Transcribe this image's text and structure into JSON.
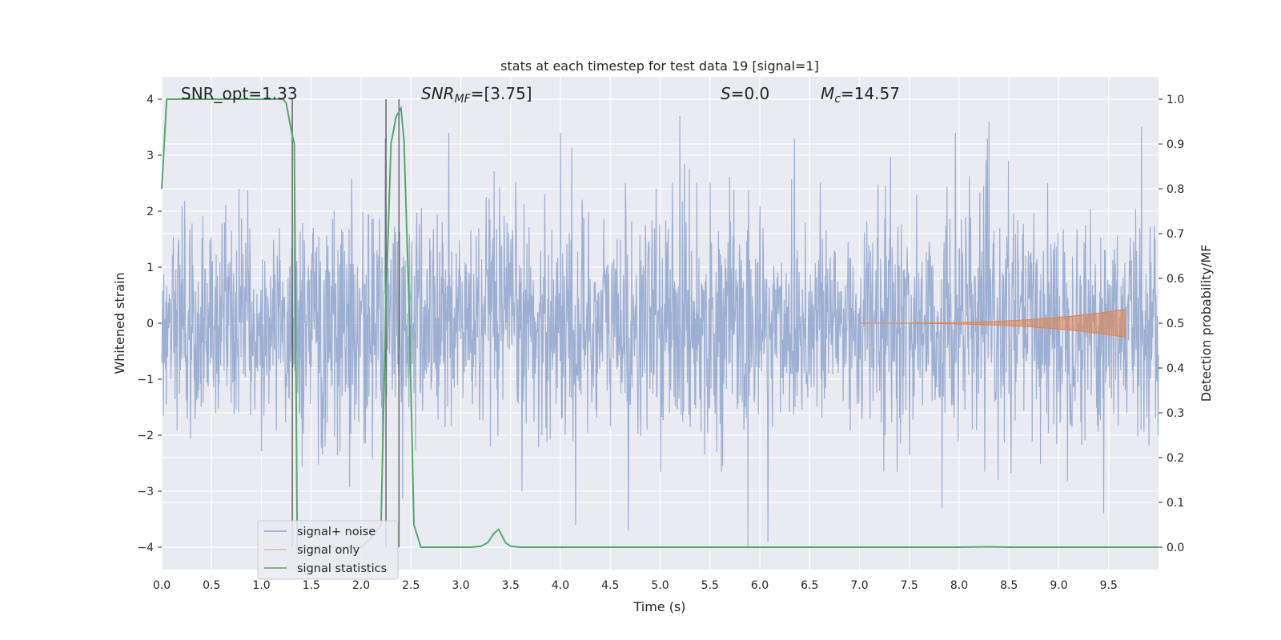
{
  "chart_data": {
    "type": "line",
    "title": "stats at each timestep for test data 19 [signal=1]",
    "xlabel": "Time (s)",
    "ylabel_left": "Whitened strain",
    "ylabel_right": "Detection probability/MF",
    "xlim": [
      0,
      10
    ],
    "ylim_left": [
      -4.4,
      4.4
    ],
    "ylim_right": [
      -0.05,
      1.05
    ],
    "x_ticks": [
      "0.0",
      "0.5",
      "1.0",
      "1.5",
      "2.0",
      "2.5",
      "3.0",
      "3.5",
      "4.0",
      "4.5",
      "5.0",
      "5.5",
      "6.0",
      "6.5",
      "7.0",
      "7.5",
      "8.0",
      "8.5",
      "9.0",
      "9.5"
    ],
    "y_ticks_left": [
      "4",
      "3",
      "2",
      "1",
      "0",
      "−1",
      "−2",
      "−3",
      "−4"
    ],
    "y_ticks_right": [
      "1.0",
      "0.9",
      "0.8",
      "0.7",
      "0.6",
      "0.5",
      "0.4",
      "0.3",
      "0.2",
      "0.1",
      "0.0"
    ],
    "grid": true,
    "legend_position": "lower-left",
    "legend": [
      "signal+ noise",
      "signal only",
      "signal statistics"
    ],
    "annotations": {
      "snr_opt": "SNR_opt=1.33",
      "snr_mf_main": "SNR",
      "snr_mf_sub": "MF",
      "snr_mf_val": "=[3.75]",
      "s_main": "S",
      "s_val": "=0.0",
      "mc_main": "M",
      "mc_sub": "c",
      "mc_val": "=14.57"
    },
    "vlines_x": [
      1.31,
      2.25,
      2.38
    ],
    "series": [
      {
        "name": "signal+ noise",
        "color": "#8fa5cd",
        "axis": "left",
        "description_values": "white noise, approx std 1.0, range -4 to 3.8, 0 to 10 s",
        "noise_std": 1.0,
        "peaks_max": [
          [
            4.0,
            3.4
          ],
          [
            5.2,
            3.7
          ],
          [
            8.3,
            3.6
          ],
          [
            9.83,
            3.5
          ],
          [
            7.96,
            3.4
          ],
          [
            2.88,
            3.4
          ],
          [
            6.35,
            3.3
          ]
        ],
        "peaks_min": [
          [
            5.88,
            -4.0
          ],
          [
            6.08,
            -3.9
          ],
          [
            4.68,
            -3.7
          ],
          [
            4.15,
            -3.6
          ],
          [
            9.45,
            -3.4
          ],
          [
            7.83,
            -3.3
          ]
        ]
      },
      {
        "name": "signal only",
        "color": "#dd8452",
        "axis": "left",
        "chirp_start": 7.0,
        "chirp_end": 9.67,
        "chirp_peak_amp": 0.25
      },
      {
        "name": "signal statistics",
        "color": "#55a868",
        "axis": "right",
        "x": [
          0,
          0.05,
          0.1,
          0.2,
          0.5,
          1.0,
          1.15,
          1.22,
          1.25,
          1.3,
          1.33,
          1.36,
          2.0,
          2.1,
          2.2,
          2.25,
          2.3,
          2.35,
          2.4,
          2.43,
          2.48,
          2.53,
          2.6,
          3.0,
          3.1,
          3.2,
          3.27,
          3.33,
          3.38,
          3.45,
          3.5,
          3.6,
          5.0,
          7.0,
          8.0,
          8.3,
          8.5,
          10.0
        ],
        "y": [
          0.8,
          1.0,
          1.0,
          1.0,
          1.0,
          1.0,
          1.0,
          1.0,
          0.99,
          0.93,
          0.9,
          0.0,
          0.0,
          0.02,
          0.05,
          0.55,
          0.9,
          0.96,
          0.98,
          0.91,
          0.55,
          0.05,
          0.0,
          0.0,
          0.0,
          0.002,
          0.01,
          0.03,
          0.04,
          0.01,
          0.002,
          0.0,
          0.0,
          0.0,
          0.0,
          0.001,
          0.0,
          0.0
        ]
      }
    ]
  }
}
